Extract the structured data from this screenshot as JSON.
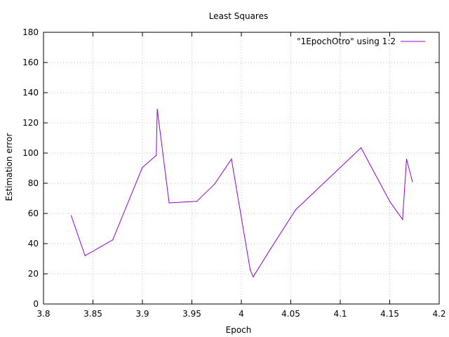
{
  "chart_data": {
    "type": "line",
    "title": "Least Squares",
    "xlabel": "Epoch",
    "ylabel": "Estimation error",
    "xlim": [
      3.8,
      4.2
    ],
    "ylim": [
      0,
      180
    ],
    "xticks": [
      3.8,
      3.85,
      3.9,
      3.95,
      4.0,
      4.05,
      4.1,
      4.15,
      4.2
    ],
    "xtick_labels": [
      "3.8",
      "3.85",
      "3.9",
      "3.95",
      "4",
      "4.05",
      "4.1",
      "4.15",
      "4.2"
    ],
    "yticks": [
      0,
      20,
      40,
      60,
      80,
      100,
      120,
      140,
      160,
      180
    ],
    "ytick_labels": [
      "0",
      "20",
      "40",
      "60",
      "80",
      "100",
      "120",
      "140",
      "160",
      "180"
    ],
    "grid": true,
    "legend_position": "top-right",
    "series": [
      {
        "name": "\"1EpochOtro\" using 1:2",
        "color": "#9400d3",
        "x": [
          3.828,
          3.842,
          3.87,
          3.9,
          3.914,
          3.915,
          3.927,
          3.955,
          3.973,
          3.99,
          4.009,
          4.012,
          4.03,
          4.055,
          4.121,
          4.15,
          4.163,
          4.167,
          4.173
        ],
        "y": [
          58.5,
          32,
          42.5,
          90.5,
          98.5,
          129,
          67,
          68,
          79.5,
          96,
          22.5,
          18,
          37,
          62.5,
          103.5,
          68,
          56,
          96,
          81
        ]
      }
    ]
  }
}
